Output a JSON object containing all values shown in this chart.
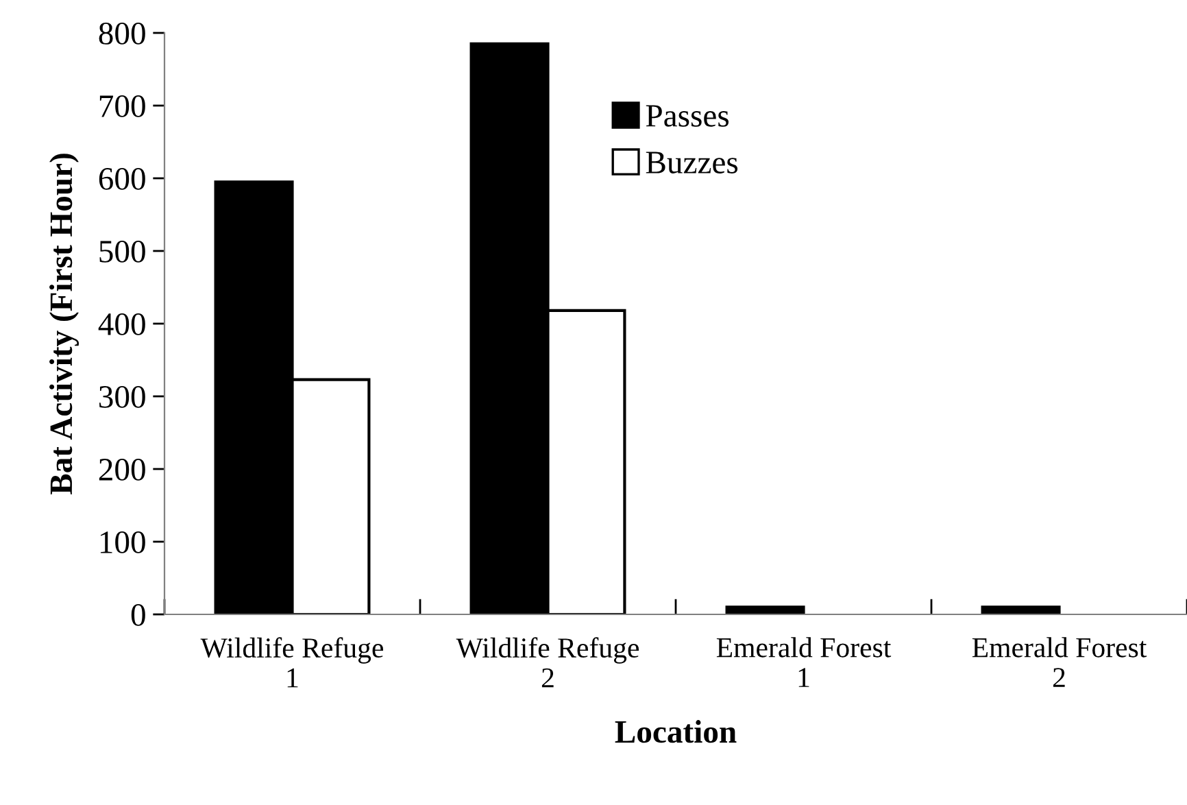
{
  "chart_data": {
    "type": "bar",
    "xlabel": "Location",
    "ylabel": "Bat Activity (First Hour)",
    "categories": [
      "Wildlife Refuge\n1",
      "Wildlife Refuge\n2",
      "Emerald Forest\n1",
      "Emerald Forest\n2"
    ],
    "series": [
      {
        "name": "Passes",
        "color": "#000000",
        "values": [
          595,
          785,
          10,
          10
        ]
      },
      {
        "name": "Buzzes",
        "color": "#ffffff",
        "values": [
          323,
          418,
          null,
          null
        ]
      }
    ],
    "ylim": [
      0,
      800
    ],
    "yticks": [
      0,
      100,
      200,
      300,
      400,
      500,
      600,
      700,
      800
    ],
    "grid": false,
    "legend": "top"
  }
}
